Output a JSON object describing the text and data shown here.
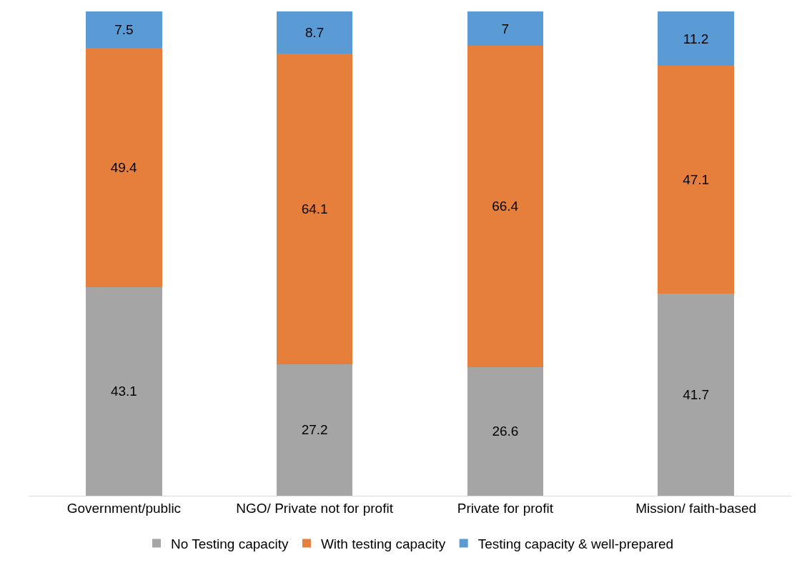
{
  "chart_data": {
    "type": "bar",
    "stacked": true,
    "data_labels": true,
    "legend": "bottom",
    "categories": [
      "Government/public",
      "NGO/ Private not for profit",
      "Private for profit",
      "Mission/ faith-based"
    ],
    "series": [
      {
        "name": "No Testing capacity",
        "color": "#a5a5a5",
        "values": [
          43.1,
          27.2,
          26.6,
          41.7
        ]
      },
      {
        "name": "With testing capacity",
        "color": "#e67e3c",
        "values": [
          49.4,
          64.1,
          66.4,
          47.1
        ]
      },
      {
        "name": "Testing capacity & well-prepared",
        "color": "#5b9bd5",
        "values": [
          7.5,
          8.7,
          7,
          11.2
        ]
      }
    ]
  }
}
